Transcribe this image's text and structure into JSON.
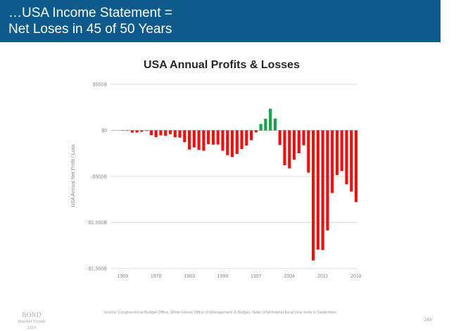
{
  "header": {
    "title_line1": "…USA Income Statement =",
    "title_line2": "Net Loses in 45 of 50 Years"
  },
  "chart_data": {
    "type": "bar",
    "title": "USA Annual Profits & Losses",
    "ylabel": "USA Annual Net Profit / Loss",
    "xlabel": "",
    "ylim": [
      -1500,
      500
    ],
    "y_ticks": [
      500,
      0,
      -500,
      -1000,
      -1500
    ],
    "y_tick_labels": [
      "$500B",
      "$0",
      "-$500B",
      "-$1,000B",
      "-$1,500B"
    ],
    "x_tick_labels": [
      "1969",
      "1976",
      "1983",
      "1990",
      "1997",
      "2004",
      "2011",
      "2018"
    ],
    "years": [
      1969,
      1970,
      1971,
      1972,
      1973,
      1974,
      1975,
      1976,
      1977,
      1978,
      1979,
      1980,
      1981,
      1982,
      1983,
      1984,
      1985,
      1986,
      1987,
      1988,
      1989,
      1990,
      1991,
      1992,
      1993,
      1994,
      1995,
      1996,
      1997,
      1998,
      1999,
      2000,
      2001,
      2002,
      2003,
      2004,
      2005,
      2006,
      2007,
      2008,
      2009,
      2010,
      2011,
      2012,
      2013,
      2014,
      2015,
      2016,
      2017,
      2018
    ],
    "values": [
      3,
      -3,
      -23,
      -23,
      -15,
      -6,
      -53,
      -74,
      -54,
      -59,
      -41,
      -74,
      -79,
      -128,
      -208,
      -185,
      -212,
      -221,
      -150,
      -155,
      -153,
      -221,
      -269,
      -290,
      -255,
      -203,
      -164,
      -107,
      -22,
      69,
      126,
      236,
      128,
      -158,
      -378,
      -413,
      -318,
      -248,
      -161,
      -459,
      -1413,
      -1294,
      -1300,
      -1087,
      -680,
      -485,
      -442,
      -585,
      -665,
      -779
    ],
    "colors": {
      "profit": "#1aa34a",
      "loss": "#ee1111"
    },
    "grid": true,
    "legend": "none"
  },
  "footer": {
    "logo_line1": "BOND",
    "logo_line2": "Internet Trends",
    "logo_line3": "2019",
    "source": "Source: Congressional Budget Office, White House Office of Management & Budget. Note: USA federal fiscal year ends in September.",
    "page_number": "265"
  }
}
